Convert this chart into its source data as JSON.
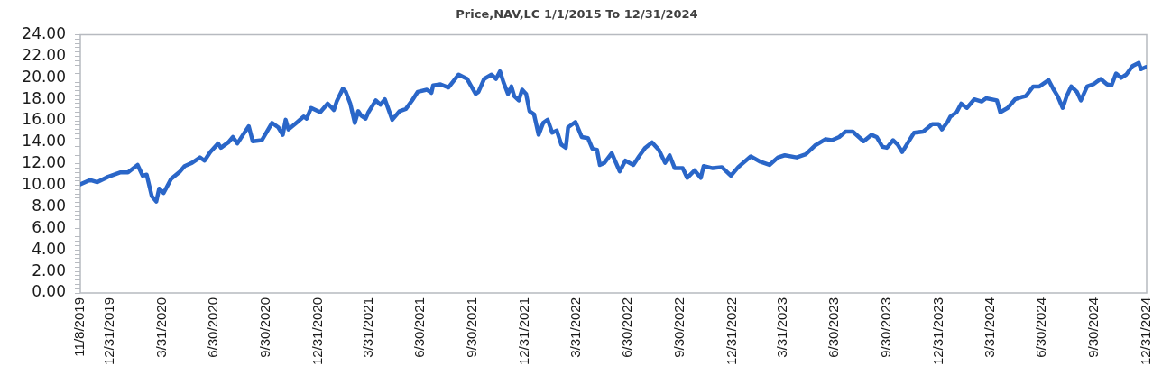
{
  "chart_data": {
    "type": "line",
    "title": "Price,NAV,LC 1/1/2015 To 12/31/2024",
    "x": [
      "2019-11-08",
      "2019-11-25",
      "2019-12-08",
      "2019-12-27",
      "2020-01-17",
      "2020-01-31",
      "2020-02-17",
      "2020-02-26",
      "2020-03-04",
      "2020-03-13",
      "2020-03-21",
      "2020-03-26",
      "2020-04-03",
      "2020-04-16",
      "2020-05-02",
      "2020-05-10",
      "2020-05-23",
      "2020-06-06",
      "2020-06-14",
      "2020-06-24",
      "2020-07-08",
      "2020-07-13",
      "2020-07-26",
      "2020-08-03",
      "2020-08-11",
      "2020-08-22",
      "2020-08-31",
      "2020-09-07",
      "2020-09-23",
      "2020-10-01",
      "2020-10-11",
      "2020-10-22",
      "2020-10-30",
      "2020-11-04",
      "2020-11-09",
      "2020-11-25",
      "2020-12-06",
      "2020-12-11",
      "2020-12-19",
      "2021-01-04",
      "2021-01-17",
      "2021-01-23",
      "2021-01-28",
      "2021-02-02",
      "2021-02-13",
      "2021-02-18",
      "2021-02-26",
      "2021-03-06",
      "2021-03-12",
      "2021-03-17",
      "2021-03-25",
      "2021-03-30",
      "2021-04-12",
      "2021-04-20",
      "2021-04-28",
      "2021-05-11",
      "2021-05-24",
      "2021-06-04",
      "2021-06-15",
      "2021-06-25",
      "2021-07-11",
      "2021-07-19",
      "2021-07-22",
      "2021-08-04",
      "2021-08-18",
      "2021-09-05",
      "2021-09-20",
      "2021-10-05",
      "2021-10-10",
      "2021-10-20",
      "2021-11-02",
      "2021-11-10",
      "2021-11-17",
      "2021-11-23",
      "2021-12-01",
      "2021-12-07",
      "2021-12-12",
      "2021-12-20",
      "2021-12-26",
      "2022-01-02",
      "2022-01-08",
      "2022-01-16",
      "2022-01-24",
      "2022-02-01",
      "2022-02-09",
      "2022-02-17",
      "2022-02-25",
      "2022-03-05",
      "2022-03-13",
      "2022-03-17",
      "2022-03-30",
      "2022-04-10",
      "2022-04-21",
      "2022-04-29",
      "2022-05-07",
      "2022-05-12",
      "2022-05-20",
      "2022-06-02",
      "2022-06-16",
      "2022-06-26",
      "2022-07-10",
      "2022-07-20",
      "2022-07-31",
      "2022-08-12",
      "2022-08-24",
      "2022-09-04",
      "2022-09-12",
      "2022-09-21",
      "2022-10-05",
      "2022-10-13",
      "2022-10-26",
      "2022-11-06",
      "2022-11-11",
      "2022-11-27",
      "2022-12-13",
      "2022-12-29",
      "2023-01-11",
      "2023-02-02",
      "2023-02-19",
      "2023-03-07",
      "2023-03-22",
      "2023-04-03",
      "2023-04-24",
      "2023-05-10",
      "2023-05-26",
      "2023-06-14",
      "2023-06-25",
      "2023-07-08",
      "2023-07-19",
      "2023-08-01",
      "2023-08-20",
      "2023-09-03",
      "2023-09-12",
      "2023-09-22",
      "2023-09-30",
      "2023-10-11",
      "2023-10-19",
      "2023-10-27",
      "2023-11-17",
      "2023-12-03",
      "2023-12-19",
      "2023-12-30",
      "2024-01-05",
      "2024-01-15",
      "2024-01-20",
      "2024-01-31",
      "2024-02-08",
      "2024-02-18",
      "2024-03-02",
      "2024-03-15",
      "2024-03-23",
      "2024-04-11",
      "2024-04-17",
      "2024-04-30",
      "2024-05-13",
      "2024-05-24",
      "2024-06-01",
      "2024-06-14",
      "2024-06-25",
      "2024-07-11",
      "2024-07-19",
      "2024-07-27",
      "2024-08-05",
      "2024-08-12",
      "2024-08-20",
      "2024-08-30",
      "2024-09-06",
      "2024-09-17",
      "2024-09-28",
      "2024-10-11",
      "2024-10-22",
      "2024-10-30",
      "2024-11-07",
      "2024-11-16",
      "2024-11-25",
      "2024-12-06",
      "2024-12-17",
      "2024-12-21",
      "2024-12-30"
    ],
    "values": [
      10.1,
      10.5,
      10.3,
      10.8,
      11.2,
      11.2,
      11.9,
      10.9,
      11.0,
      9.0,
      8.5,
      9.7,
      9.3,
      10.6,
      11.3,
      11.8,
      12.1,
      12.6,
      12.3,
      13.1,
      13.9,
      13.5,
      14.0,
      14.5,
      13.9,
      14.8,
      15.5,
      14.1,
      14.2,
      14.9,
      15.8,
      15.4,
      14.7,
      16.1,
      15.2,
      15.9,
      16.4,
      16.2,
      17.2,
      16.8,
      17.6,
      17.3,
      17.0,
      17.8,
      19.0,
      18.7,
      17.6,
      15.8,
      16.9,
      16.5,
      16.2,
      16.8,
      17.9,
      17.5,
      18.0,
      16.1,
      16.9,
      17.1,
      17.9,
      18.7,
      18.9,
      18.6,
      19.3,
      19.4,
      19.1,
      20.3,
      19.9,
      18.5,
      18.7,
      19.9,
      20.3,
      19.9,
      20.6,
      19.6,
      18.5,
      19.2,
      18.3,
      17.9,
      18.9,
      18.5,
      16.9,
      16.6,
      14.7,
      15.8,
      16.1,
      14.9,
      15.1,
      13.8,
      13.5,
      15.4,
      15.9,
      14.5,
      14.4,
      13.4,
      13.3,
      11.9,
      12.1,
      13.0,
      11.3,
      12.3,
      11.9,
      12.7,
      13.5,
      14.0,
      13.3,
      12.1,
      12.8,
      11.6,
      11.6,
      10.7,
      11.4,
      10.7,
      11.8,
      11.6,
      11.7,
      10.9,
      11.7,
      12.7,
      12.2,
      11.9,
      12.6,
      12.8,
      12.6,
      12.9,
      13.7,
      14.3,
      14.2,
      14.5,
      15.0,
      15.0,
      14.1,
      14.7,
      14.5,
      13.6,
      13.5,
      14.2,
      13.8,
      13.1,
      14.9,
      15.0,
      15.7,
      15.7,
      15.2,
      15.9,
      16.4,
      16.8,
      17.6,
      17.2,
      18.0,
      17.8,
      18.1,
      17.9,
      16.8,
      17.2,
      18.0,
      18.2,
      18.3,
      19.2,
      19.2,
      19.8,
      19.0,
      18.3,
      17.2,
      18.3,
      19.2,
      18.7,
      17.9,
      19.2,
      19.4,
      19.9,
      19.4,
      19.3,
      20.4,
      20.0,
      20.3,
      21.1,
      21.4,
      20.8,
      21.0
    ],
    "color": "#2a66c8",
    "line_style": "solid",
    "marker": "none",
    "grid": false,
    "legend": false,
    "xlim": [
      "2019-11-08",
      "2024-12-31"
    ],
    "xticks": [
      {
        "value": "2019-11-08",
        "label": "11/8/2019"
      },
      {
        "value": "2019-12-31",
        "label": "12/31/2019"
      },
      {
        "value": "2020-03-31",
        "label": "3/31/2020"
      },
      {
        "value": "2020-06-30",
        "label": "6/30/2020"
      },
      {
        "value": "2020-09-30",
        "label": "9/30/2020"
      },
      {
        "value": "2020-12-31",
        "label": "12/31/2020"
      },
      {
        "value": "2021-03-31",
        "label": "3/31/2021"
      },
      {
        "value": "2021-06-30",
        "label": "6/30/2021"
      },
      {
        "value": "2021-09-30",
        "label": "9/30/2021"
      },
      {
        "value": "2021-12-31",
        "label": "12/31/2021"
      },
      {
        "value": "2022-03-31",
        "label": "3/31/2022"
      },
      {
        "value": "2022-06-30",
        "label": "6/30/2022"
      },
      {
        "value": "2022-09-30",
        "label": "9/30/2022"
      },
      {
        "value": "2022-12-31",
        "label": "12/31/2022"
      },
      {
        "value": "2023-03-31",
        "label": "3/31/2023"
      },
      {
        "value": "2023-06-30",
        "label": "6/30/2023"
      },
      {
        "value": "2023-09-30",
        "label": "9/30/2023"
      },
      {
        "value": "2023-12-31",
        "label": "12/31/2023"
      },
      {
        "value": "2024-03-31",
        "label": "3/31/2024"
      },
      {
        "value": "2024-06-30",
        "label": "6/30/2024"
      },
      {
        "value": "2024-09-30",
        "label": "9/30/2024"
      },
      {
        "value": "2024-12-31",
        "label": "12/31/2024"
      }
    ],
    "ylim": [
      0,
      24
    ],
    "yticks": [
      {
        "value": 0,
        "label": "0.00"
      },
      {
        "value": 0.4,
        "label": null
      },
      {
        "value": 0.8,
        "label": null
      },
      {
        "value": 1.2,
        "label": null
      },
      {
        "value": 1.6,
        "label": null
      },
      {
        "value": 2,
        "label": "2.00"
      },
      {
        "value": 2.4,
        "label": null
      },
      {
        "value": 2.8,
        "label": null
      },
      {
        "value": 3.2,
        "label": null
      },
      {
        "value": 3.6,
        "label": null
      },
      {
        "value": 4,
        "label": "4.00"
      },
      {
        "value": 4.4,
        "label": null
      },
      {
        "value": 4.8,
        "label": null
      },
      {
        "value": 5.2,
        "label": null
      },
      {
        "value": 5.6,
        "label": null
      },
      {
        "value": 6,
        "label": "6.00"
      },
      {
        "value": 6.4,
        "label": null
      },
      {
        "value": 6.8,
        "label": null
      },
      {
        "value": 7.2,
        "label": null
      },
      {
        "value": 7.6,
        "label": null
      },
      {
        "value": 8,
        "label": "8.00"
      },
      {
        "value": 8.4,
        "label": null
      },
      {
        "value": 8.8,
        "label": null
      },
      {
        "value": 9.2,
        "label": null
      },
      {
        "value": 9.6,
        "label": null
      },
      {
        "value": 10,
        "label": "10.00"
      },
      {
        "value": 10.4,
        "label": null
      },
      {
        "value": 10.8,
        "label": null
      },
      {
        "value": 11.2,
        "label": null
      },
      {
        "value": 11.6,
        "label": null
      },
      {
        "value": 12,
        "label": "12.00"
      },
      {
        "value": 12.4,
        "label": null
      },
      {
        "value": 12.8,
        "label": null
      },
      {
        "value": 13.2,
        "label": null
      },
      {
        "value": 13.6,
        "label": null
      },
      {
        "value": 14,
        "label": "14.00"
      },
      {
        "value": 14.4,
        "label": null
      },
      {
        "value": 14.8,
        "label": null
      },
      {
        "value": 15.2,
        "label": null
      },
      {
        "value": 15.6,
        "label": null
      },
      {
        "value": 16,
        "label": "16.00"
      },
      {
        "value": 16.4,
        "label": null
      },
      {
        "value": 16.8,
        "label": null
      },
      {
        "value": 17.2,
        "label": null
      },
      {
        "value": 17.6,
        "label": null
      },
      {
        "value": 18,
        "label": "18.00"
      },
      {
        "value": 18.4,
        "label": null
      },
      {
        "value": 18.8,
        "label": null
      },
      {
        "value": 19.2,
        "label": null
      },
      {
        "value": 19.6,
        "label": null
      },
      {
        "value": 20,
        "label": "20.00"
      },
      {
        "value": 20.4,
        "label": null
      },
      {
        "value": 20.8,
        "label": null
      },
      {
        "value": 21.2,
        "label": null
      },
      {
        "value": 21.6,
        "label": null
      },
      {
        "value": 22,
        "label": "22.00"
      },
      {
        "value": 22.4,
        "label": null
      },
      {
        "value": 22.8,
        "label": null
      },
      {
        "value": 23.2,
        "label": null
      },
      {
        "value": 23.6,
        "label": null
      },
      {
        "value": 24,
        "label": "24.00"
      }
    ]
  }
}
